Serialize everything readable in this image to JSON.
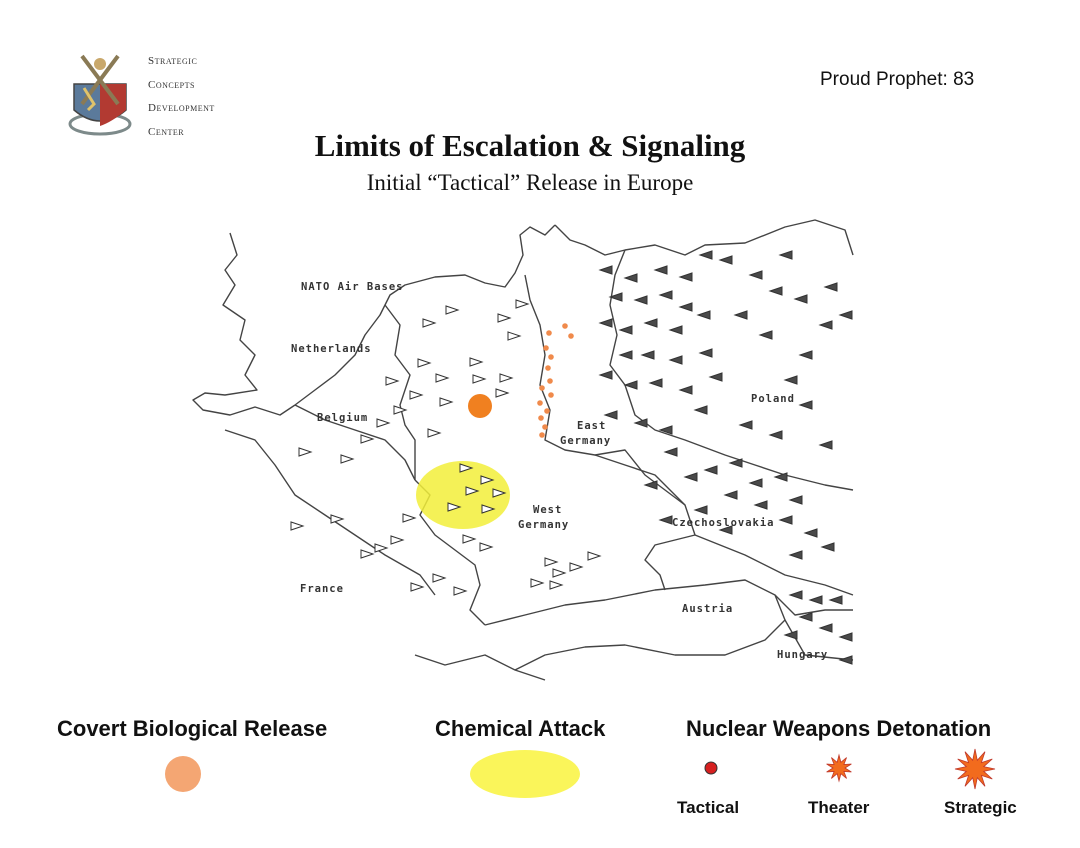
{
  "header": {
    "org_lines": [
      "Strategic",
      "Concepts",
      "Development",
      "Center"
    ],
    "slide_id": "Proud Prophet: 83",
    "title": "Limits of Escalation & Signaling",
    "subtitle": "Initial “Tactical” Release in Europe"
  },
  "map": {
    "labels": {
      "nato_air_bases": "NATO Air Bases",
      "netherlands": "Netherlands",
      "belgium": "Belgium",
      "france": "France",
      "east_germany_1": "East",
      "east_germany_2": "Germany",
      "west_germany_1": "West",
      "west_germany_2": "Germany",
      "poland": "Poland",
      "czechoslovakia": "Czechoslovakia",
      "austria": "Austria",
      "hungary": "Hungary"
    },
    "colors": {
      "nato_symbol": "#ffffff",
      "pact_symbol": "#4a4a4a",
      "biological": "#f08020",
      "chemical": "#f2ee3a",
      "tactical_dots": "#f08a4b"
    }
  },
  "legend": {
    "biological_label": "Covert Biological Release",
    "chemical_label": "Chemical Attack",
    "nuclear_label": "Nuclear Weapons Detonation",
    "tactical_label": "Tactical",
    "theater_label": "Theater",
    "strategic_label": "Strategic",
    "colors": {
      "biological": "#f4a673",
      "chemical": "#faf55a",
      "tactical": "#d62020",
      "burst": "#f26b1d"
    },
    "icons": {
      "tactical": "red-dot-icon",
      "theater": "small-burst-icon",
      "strategic": "large-burst-icon"
    }
  }
}
